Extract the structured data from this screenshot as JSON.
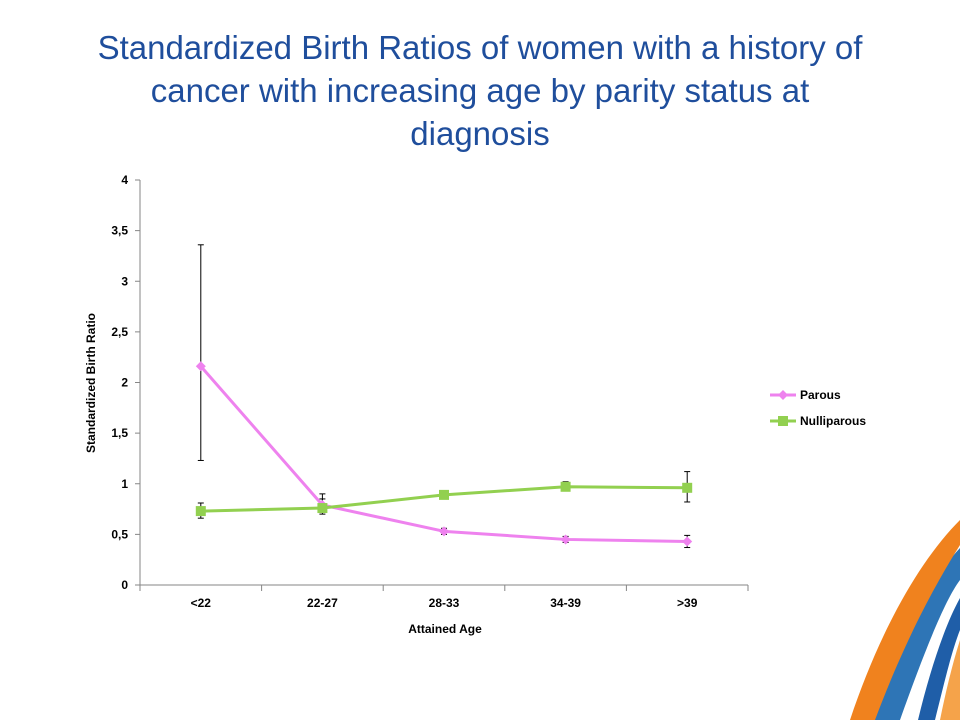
{
  "title": "Standardized Birth Ratios of women with a history of cancer with increasing age by parity status at diagnosis",
  "chart_data": {
    "type": "line",
    "title": "Standardized Birth Ratios of women with a history of cancer with increasing age by parity status at diagnosis",
    "categories": [
      "<22",
      "22-27",
      "28-33",
      "34-39",
      ">39"
    ],
    "xlabel": "Attained Age",
    "ylabel": "Standardized Birth Ratio",
    "ylim": [
      0,
      4
    ],
    "yticks": [
      0,
      0.5,
      1,
      1.5,
      2,
      2.5,
      3,
      3.5,
      4
    ],
    "ytick_labels": [
      "0",
      "0,5",
      "1",
      "1,5",
      "2",
      "2,5",
      "3",
      "3,5",
      "4"
    ],
    "grid": false,
    "legend_position": "right",
    "series": [
      {
        "name": "Parous",
        "color": "#ee82ee",
        "marker": "diamond",
        "values": [
          2.16,
          0.79,
          0.53,
          0.45,
          0.43
        ],
        "err_low": [
          1.23,
          0.73,
          0.5,
          0.42,
          0.37
        ],
        "err_high": [
          3.36,
          0.85,
          0.56,
          0.48,
          0.49
        ]
      },
      {
        "name": "Nulliparous",
        "color": "#92d050",
        "marker": "square",
        "values": [
          0.73,
          0.76,
          0.89,
          0.97,
          0.96
        ],
        "err_low": [
          0.66,
          0.7,
          0.86,
          0.94,
          0.82
        ],
        "err_high": [
          0.81,
          0.9,
          0.92,
          1.02,
          1.12
        ]
      }
    ]
  }
}
